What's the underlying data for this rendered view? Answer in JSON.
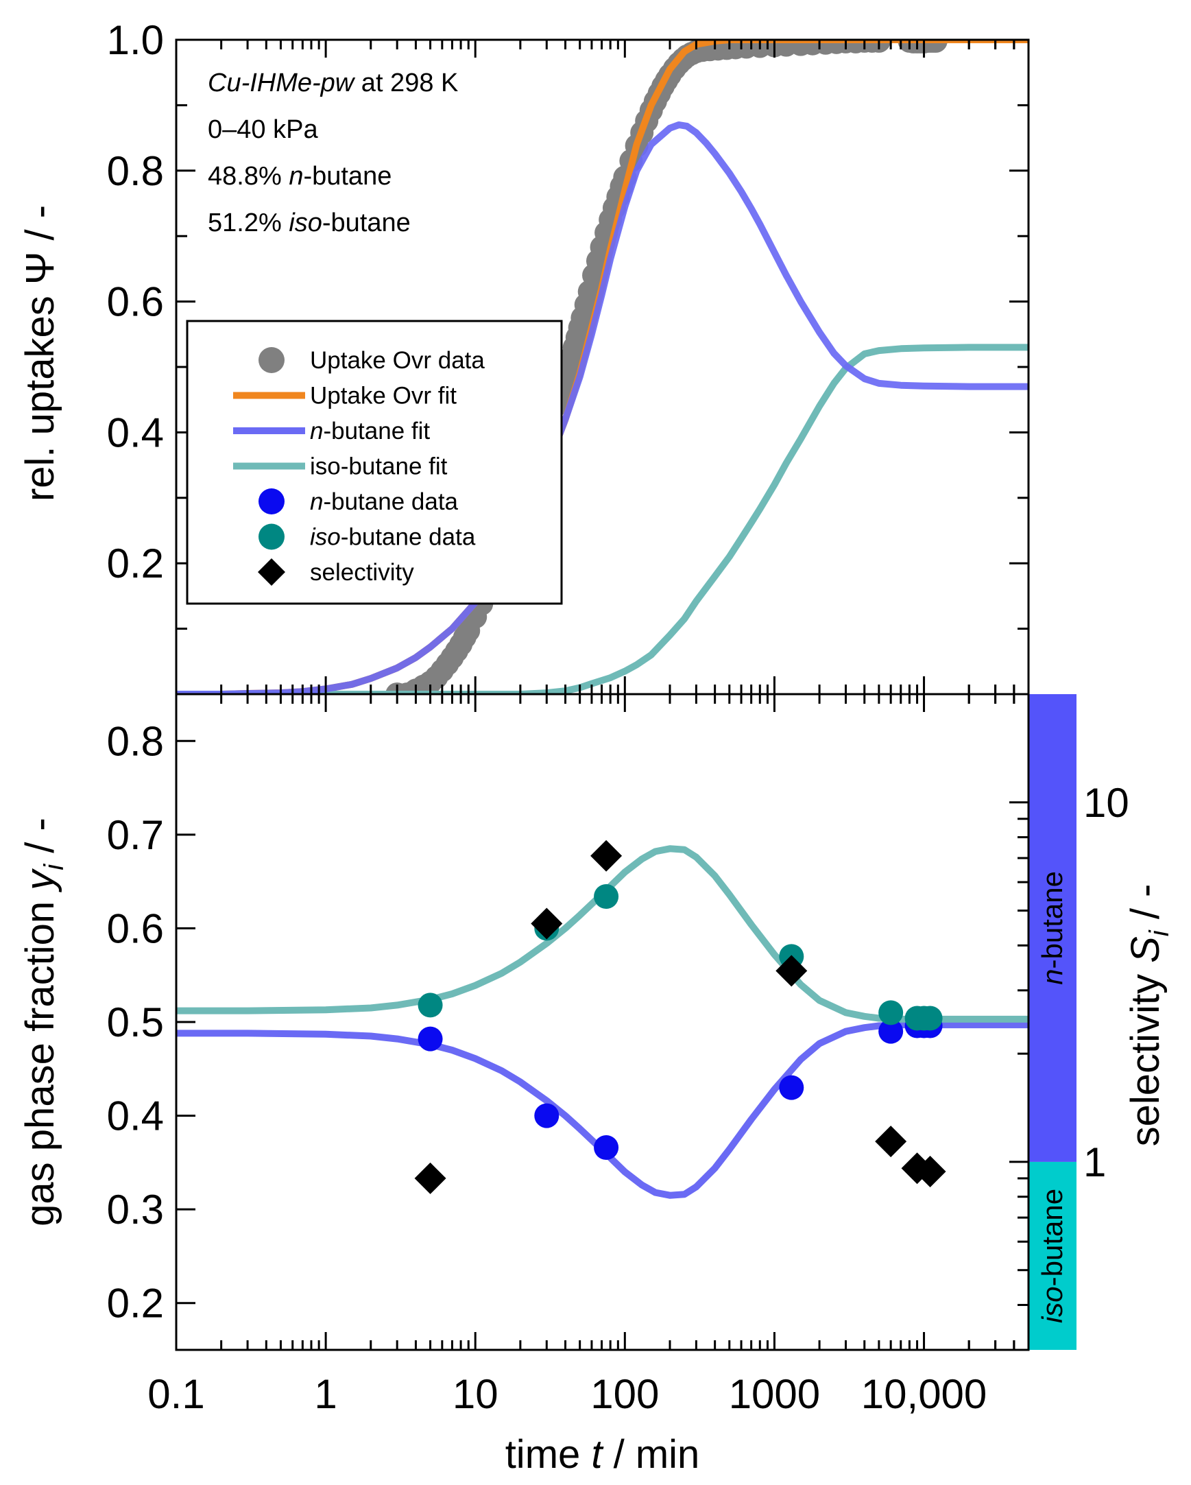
{
  "chart_data": [
    {
      "type": "scatter",
      "panel": "top",
      "x_scale": "log",
      "xlim": [
        0.1,
        50000
      ],
      "ylim": [
        0,
        1.0
      ],
      "ylabel": {
        "pre": "rel. uptakes ",
        "symbol": "Ψ",
        "post": " / -"
      },
      "y_ticks": [
        0.2,
        0.4,
        0.6,
        0.8,
        1.0
      ],
      "y_tick_labels": [
        "0.2",
        "0.4",
        "0.6",
        "0.8",
        "1.0"
      ],
      "annotations": [
        {
          "parts": [
            {
              "text": "Cu-IHMe-pw",
              "italic": true
            },
            {
              "text": " at 298 K",
              "italic": false
            }
          ]
        },
        {
          "parts": [
            {
              "text": "0–40 kPa",
              "italic": false
            }
          ]
        },
        {
          "parts": [
            {
              "text": "48.8% ",
              "italic": false
            },
            {
              "text": "n",
              "italic": true
            },
            {
              "text": "-butane",
              "italic": false
            }
          ]
        },
        {
          "parts": [
            {
              "text": "51.2% ",
              "italic": false
            },
            {
              "text": "iso",
              "italic": true
            },
            {
              "text": "-butane",
              "italic": false
            }
          ]
        }
      ],
      "legend": {
        "position": "center-left",
        "entries": [
          {
            "marker": "circle",
            "color": "#808080",
            "parts": [
              {
                "text": "Uptake Ovr data",
                "italic": false
              }
            ]
          },
          {
            "marker": "line",
            "color": "#F0861E",
            "parts": [
              {
                "text": "Uptake Ovr fit",
                "italic": false
              }
            ]
          },
          {
            "marker": "line",
            "color": "#6A6AF4",
            "parts": [
              {
                "text": "n",
                "italic": true
              },
              {
                "text": "-butane fit",
                "italic": false
              }
            ]
          },
          {
            "marker": "line",
            "color": "#6FBAB7",
            "parts": [
              {
                "text": "iso-butane fit",
                "italic": false
              }
            ]
          },
          {
            "marker": "circle",
            "color": "#0A0AF0",
            "parts": [
              {
                "text": "n",
                "italic": true
              },
              {
                "text": "-butane data",
                "italic": false
              }
            ]
          },
          {
            "marker": "circle",
            "color": "#008782",
            "parts": [
              {
                "text": "iso",
                "italic": true
              },
              {
                "text": "-butane data",
                "italic": false
              }
            ]
          },
          {
            "marker": "diamond",
            "color": "#000000",
            "parts": [
              {
                "text": "selectivity",
                "italic": false
              }
            ]
          }
        ]
      },
      "series": [
        {
          "name": "Uptake Ovr data",
          "kind": "points",
          "color": "#808080",
          "x": [
            3.0,
            3.5,
            4.0,
            4.5,
            5.0,
            5.5,
            6.0,
            6.5,
            7.0,
            7.5,
            8.0,
            8.5,
            9.0,
            10,
            11,
            12,
            13,
            14,
            15,
            16,
            17,
            18,
            19,
            20,
            22,
            24,
            26,
            28,
            30,
            32,
            34,
            36,
            38,
            40,
            42,
            44,
            46,
            48,
            50,
            52,
            55,
            58,
            62,
            66,
            70,
            75,
            80,
            85,
            90,
            95,
            100,
            110,
            120,
            130,
            140,
            150,
            160,
            170,
            180,
            190,
            200,
            215,
            230,
            245,
            260,
            280,
            300,
            330,
            370,
            420,
            480,
            550,
            650,
            800,
            1000,
            1200,
            1500,
            1800,
            2200,
            2600,
            3000,
            3500,
            4000,
            4500,
            5000,
            8000,
            8500,
            9000,
            9500,
            10000,
            10500,
            11000,
            11500,
            12000
          ],
          "y": [
            0.0,
            0.0,
            0.006,
            0.012,
            0.018,
            0.026,
            0.036,
            0.046,
            0.056,
            0.066,
            0.076,
            0.087,
            0.097,
            0.118,
            0.138,
            0.158,
            0.177,
            0.196,
            0.214,
            0.232,
            0.249,
            0.265,
            0.28,
            0.295,
            0.322,
            0.347,
            0.37,
            0.39,
            0.408,
            0.425,
            0.44,
            0.455,
            0.47,
            0.485,
            0.5,
            0.515,
            0.53,
            0.545,
            0.56,
            0.575,
            0.595,
            0.615,
            0.64,
            0.662,
            0.683,
            0.705,
            0.725,
            0.743,
            0.76,
            0.776,
            0.79,
            0.815,
            0.838,
            0.858,
            0.876,
            0.892,
            0.906,
            0.918,
            0.929,
            0.938,
            0.946,
            0.956,
            0.964,
            0.97,
            0.975,
            0.979,
            0.982,
            0.984,
            0.985,
            0.986,
            0.987,
            0.988,
            0.989,
            0.99,
            0.991,
            0.992,
            0.993,
            0.994,
            0.995,
            0.996,
            0.997,
            0.997,
            0.998,
            0.998,
            0.998,
            0.998,
            0.997,
            0.997,
            0.997,
            0.997,
            0.998,
            0.998,
            0.998,
            0.998
          ]
        },
        {
          "name": "Uptake Ovr fit",
          "kind": "line",
          "color": "#F0861E",
          "x": [
            0.1,
            0.2,
            0.3,
            0.5,
            0.7,
            1,
            1.5,
            2,
            3,
            4,
            5,
            7,
            10,
            15,
            20,
            25,
            30,
            40,
            50,
            60,
            70,
            80,
            100,
            120,
            150,
            200,
            250,
            300,
            400,
            500,
            700,
            1000,
            2000,
            5000,
            10000,
            20000,
            50000
          ],
          "y": [
            0.0,
            0.0,
            0.001,
            0.002,
            0.004,
            0.008,
            0.015,
            0.024,
            0.04,
            0.056,
            0.072,
            0.1,
            0.14,
            0.2,
            0.255,
            0.3,
            0.345,
            0.42,
            0.49,
            0.56,
            0.62,
            0.68,
            0.77,
            0.84,
            0.9,
            0.955,
            0.982,
            0.993,
            0.998,
            1.0,
            1.0,
            1.0,
            1.0,
            1.0,
            1.0,
            1.0,
            1.0
          ]
        },
        {
          "name": "n-butane fit",
          "kind": "line",
          "color": "#6A6AF4",
          "x": [
            0.1,
            0.2,
            0.3,
            0.5,
            0.7,
            1,
            1.5,
            2,
            3,
            4,
            5,
            7,
            10,
            15,
            20,
            25,
            30,
            40,
            50,
            60,
            70,
            80,
            100,
            120,
            150,
            200,
            230,
            260,
            300,
            350,
            400,
            500,
            600,
            700,
            800,
            1000,
            1200,
            1500,
            2000,
            2500,
            3000,
            4000,
            5000,
            7000,
            10000,
            20000,
            50000
          ],
          "y": [
            0.0,
            0.0,
            0.001,
            0.002,
            0.004,
            0.008,
            0.015,
            0.024,
            0.04,
            0.056,
            0.072,
            0.1,
            0.14,
            0.2,
            0.255,
            0.3,
            0.345,
            0.42,
            0.485,
            0.55,
            0.61,
            0.665,
            0.745,
            0.8,
            0.84,
            0.865,
            0.87,
            0.868,
            0.858,
            0.842,
            0.826,
            0.796,
            0.768,
            0.742,
            0.718,
            0.675,
            0.64,
            0.6,
            0.553,
            0.521,
            0.502,
            0.482,
            0.475,
            0.472,
            0.471,
            0.47,
            0.47
          ]
        },
        {
          "name": "iso-butane fit",
          "kind": "line",
          "color": "#6FBAB7",
          "x": [
            0.1,
            1,
            5,
            10,
            20,
            30,
            40,
            50,
            60,
            80,
            100,
            120,
            150,
            200,
            250,
            300,
            400,
            500,
            600,
            700,
            800,
            1000,
            1200,
            1500,
            2000,
            2500,
            3000,
            4000,
            5000,
            7000,
            10000,
            20000,
            50000
          ],
          "y": [
            0.0,
            0.0,
            0.0,
            0.0,
            0.0,
            0.002,
            0.005,
            0.01,
            0.016,
            0.025,
            0.035,
            0.045,
            0.06,
            0.09,
            0.115,
            0.142,
            0.18,
            0.21,
            0.238,
            0.262,
            0.283,
            0.32,
            0.353,
            0.39,
            0.44,
            0.475,
            0.498,
            0.52,
            0.525,
            0.528,
            0.529,
            0.53,
            0.53
          ]
        }
      ]
    },
    {
      "type": "scatter",
      "panel": "bottom",
      "x_scale": "log",
      "xlim": [
        0.1,
        50000
      ],
      "ylim": [
        0.15,
        0.85
      ],
      "y_ticks": [
        0.2,
        0.3,
        0.4,
        0.5,
        0.6,
        0.7,
        0.8
      ],
      "y_tick_labels": [
        "0.2",
        "0.3",
        "0.4",
        "0.5",
        "0.6",
        "0.7",
        "0.8"
      ],
      "x_ticks": [
        0.1,
        1,
        10,
        100,
        1000,
        10000
      ],
      "x_tick_labels": [
        "0.1",
        "1",
        "10",
        "100",
        "1000",
        "10,000"
      ],
      "xlabel": {
        "pre": "time ",
        "var": "t",
        "post": " / min"
      },
      "ylabel": {
        "pre": "gas phase fraction ",
        "var": "y",
        "sub": "i",
        "post": " / -"
      },
      "y2label": {
        "pre": "selectivity ",
        "var": "S",
        "sub": "i",
        "post": " / -"
      },
      "y2_scale": "log",
      "y2lim": [
        0.3,
        20
      ],
      "y2_tick_labels": [
        "1",
        "10"
      ],
      "y2_ticks": [
        1,
        10
      ],
      "bands": [
        {
          "from": 1,
          "to": 20,
          "color": "#5454FA",
          "parts": [
            {
              "text": "n",
              "italic": true
            },
            {
              "text": "-butane",
              "italic": false
            }
          ]
        },
        {
          "from": 0.3,
          "to": 1,
          "color": "#00CCCC",
          "parts": [
            {
              "text": "iso",
              "italic": true
            },
            {
              "text": "-butane",
              "italic": false
            }
          ]
        }
      ],
      "series": [
        {
          "name": "n-butane fit",
          "kind": "line",
          "color": "#6A6AF4",
          "x": [
            0.1,
            0.3,
            1,
            2,
            3,
            5,
            7,
            10,
            15,
            20,
            30,
            40,
            50,
            70,
            100,
            130,
            160,
            200,
            250,
            300,
            400,
            500,
            700,
            1000,
            1500,
            2000,
            3000,
            4000,
            5000,
            7000,
            10000,
            20000,
            50000
          ],
          "y": [
            0.488,
            0.488,
            0.487,
            0.485,
            0.482,
            0.476,
            0.47,
            0.461,
            0.448,
            0.436,
            0.416,
            0.4,
            0.386,
            0.364,
            0.34,
            0.326,
            0.318,
            0.315,
            0.316,
            0.324,
            0.344,
            0.364,
            0.396,
            0.428,
            0.46,
            0.477,
            0.49,
            0.494,
            0.496,
            0.497,
            0.497,
            0.497,
            0.497
          ]
        },
        {
          "name": "iso-butane fit",
          "kind": "line",
          "color": "#6FBAB7",
          "x": [
            0.1,
            0.3,
            1,
            2,
            3,
            5,
            7,
            10,
            15,
            20,
            30,
            40,
            50,
            70,
            100,
            130,
            160,
            200,
            250,
            300,
            400,
            500,
            700,
            1000,
            1500,
            2000,
            3000,
            4000,
            5000,
            7000,
            10000,
            20000,
            50000
          ],
          "y": [
            0.512,
            0.512,
            0.513,
            0.515,
            0.518,
            0.524,
            0.53,
            0.539,
            0.552,
            0.564,
            0.584,
            0.6,
            0.614,
            0.636,
            0.66,
            0.674,
            0.682,
            0.685,
            0.684,
            0.676,
            0.656,
            0.636,
            0.604,
            0.572,
            0.54,
            0.523,
            0.51,
            0.506,
            0.504,
            0.503,
            0.503,
            0.503,
            0.503
          ]
        },
        {
          "name": "n-butane data",
          "kind": "points",
          "marker": "circle",
          "color": "#0A0AF0",
          "x": [
            5,
            30,
            75,
            1300,
            6000,
            9000,
            10000,
            11000
          ],
          "y": [
            0.482,
            0.4,
            0.366,
            0.43,
            0.49,
            0.496,
            0.496,
            0.496
          ]
        },
        {
          "name": "iso-butane data",
          "kind": "points",
          "marker": "circle",
          "color": "#008782",
          "x": [
            5,
            30,
            75,
            1300,
            6000,
            9000,
            10000,
            11000
          ],
          "y": [
            0.518,
            0.6,
            0.634,
            0.57,
            0.51,
            0.504,
            0.504,
            0.504
          ]
        },
        {
          "name": "selectivity",
          "kind": "points",
          "marker": "diamond",
          "color": "#000000",
          "axis": "y2",
          "x": [
            5,
            30,
            75,
            1300,
            6000,
            9000,
            11000
          ],
          "y": [
            0.9,
            4.6,
            7.1,
            3.4,
            1.14,
            0.96,
            0.94
          ]
        }
      ]
    }
  ]
}
